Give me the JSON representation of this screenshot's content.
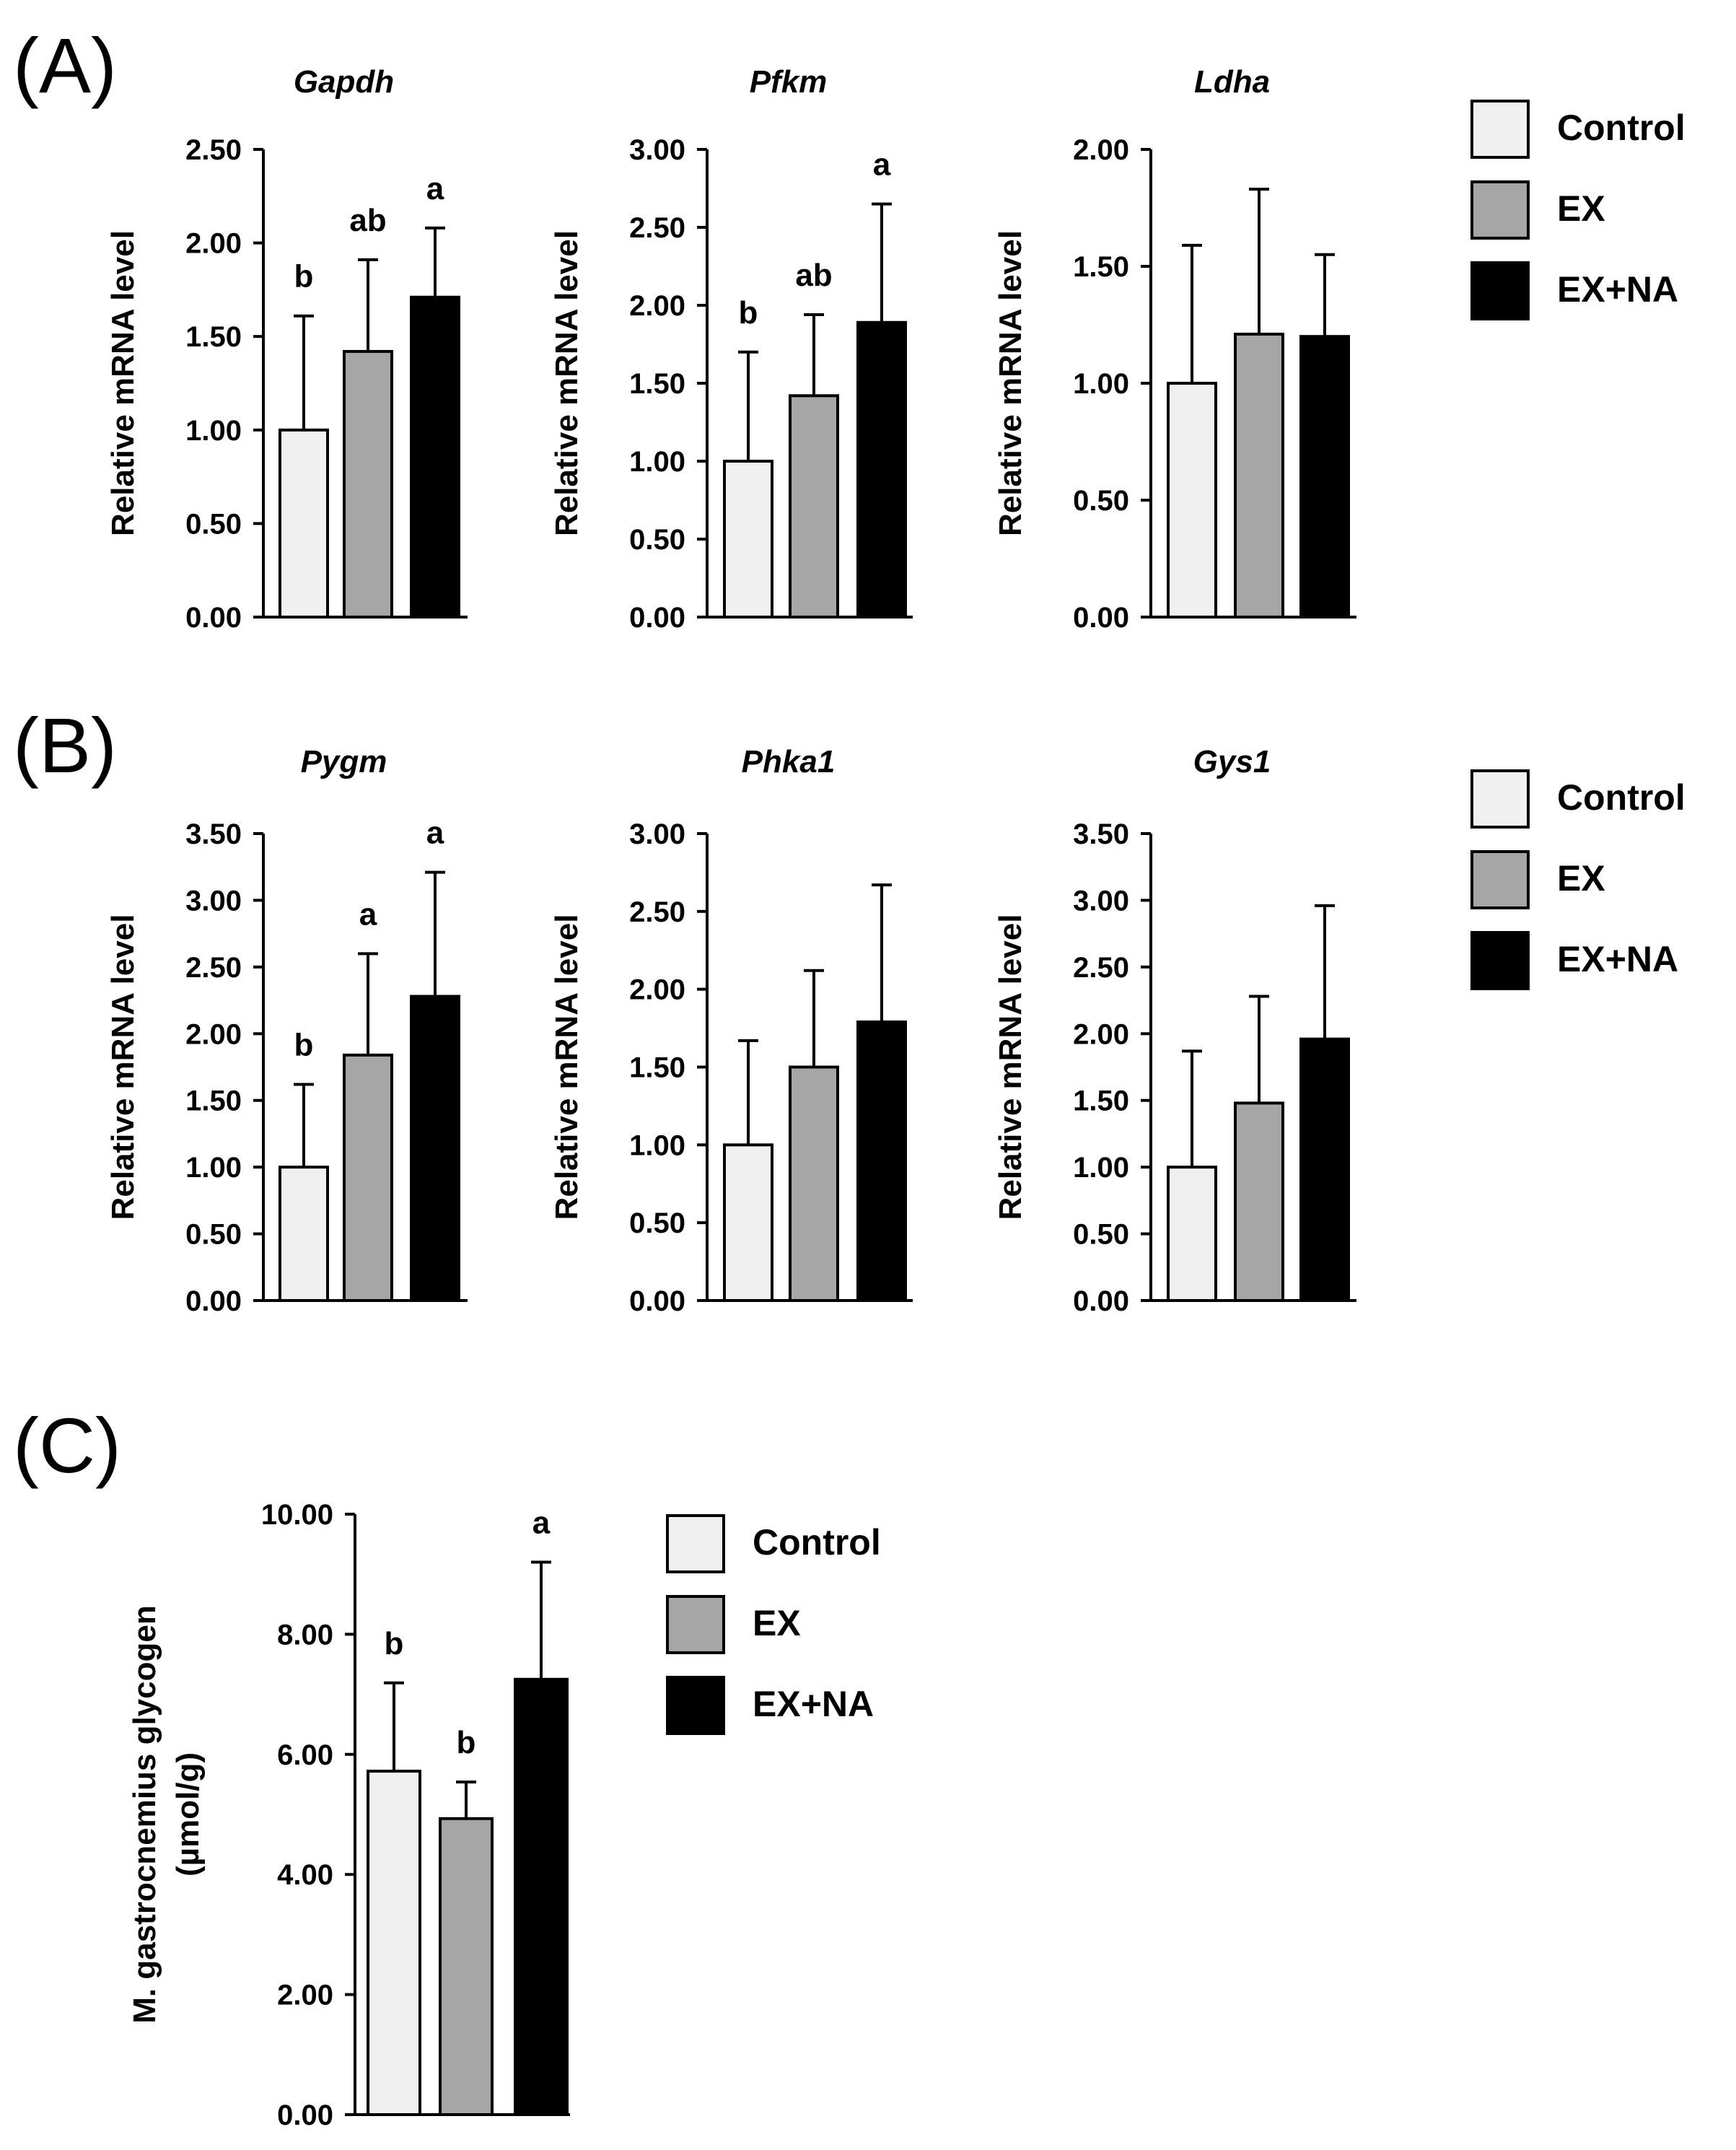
{
  "figure": {
    "colors": {
      "Control": "#f0f0f0",
      "EX": "#a6a6a6",
      "EX+NA": "#000000",
      "axis": "#000000",
      "edge": "#000000"
    },
    "panels": [
      {
        "label": "(A)",
        "legend": [
          "Control",
          "EX",
          "EX+NA"
        ]
      },
      {
        "label": "(B)",
        "legend": [
          "Control",
          "EX",
          "EX+NA"
        ]
      },
      {
        "label": "(C)",
        "legend": [
          "Control",
          "EX",
          "EX+NA"
        ]
      }
    ]
  },
  "chart_data": [
    {
      "type": "bar",
      "panel": "A",
      "title": "Gapdh",
      "ylabel": "Relative mRNA level",
      "categories": [
        "Control",
        "EX",
        "EX+NA"
      ],
      "values": [
        1.0,
        1.42,
        1.71
      ],
      "errors": [
        0.61,
        0.49,
        0.37
      ],
      "letters": [
        "b",
        "ab",
        "a"
      ],
      "ylim": [
        0,
        2.5
      ],
      "yticks": [
        "0.00",
        "0.50",
        "1.00",
        "1.50",
        "2.00",
        "2.50"
      ]
    },
    {
      "type": "bar",
      "panel": "A",
      "title": "Pfkm",
      "ylabel": "Relative mRNA level",
      "categories": [
        "Control",
        "EX",
        "EX+NA"
      ],
      "values": [
        1.0,
        1.42,
        1.89
      ],
      "errors": [
        0.7,
        0.52,
        0.76
      ],
      "letters": [
        "b",
        "ab",
        "a"
      ],
      "ylim": [
        0,
        3.0
      ],
      "yticks": [
        "0.00",
        "0.50",
        "1.00",
        "1.50",
        "2.00",
        "2.50",
        "3.00"
      ]
    },
    {
      "type": "bar",
      "panel": "A",
      "title": "Ldha",
      "ylabel": "Relative mRNA level",
      "categories": [
        "Control",
        "EX",
        "EX+NA"
      ],
      "values": [
        1.0,
        1.21,
        1.2
      ],
      "errors": [
        0.59,
        0.62,
        0.35
      ],
      "letters": [
        "",
        "",
        ""
      ],
      "ylim": [
        0,
        2.0
      ],
      "yticks": [
        "0.00",
        "0.50",
        "1.00",
        "1.50",
        "2.00"
      ]
    },
    {
      "type": "bar",
      "panel": "B",
      "title": "Pygm",
      "ylabel": "Relative mRNA level",
      "categories": [
        "Control",
        "EX",
        "EX+NA"
      ],
      "values": [
        1.0,
        1.84,
        2.28
      ],
      "errors": [
        0.62,
        0.76,
        0.93
      ],
      "letters": [
        "b",
        "a",
        "a"
      ],
      "ylim": [
        0,
        3.5
      ],
      "yticks": [
        "0.00",
        "0.50",
        "1.00",
        "1.50",
        "2.00",
        "2.50",
        "3.00",
        "3.50"
      ]
    },
    {
      "type": "bar",
      "panel": "B",
      "title": "Phka1",
      "ylabel": "Relative mRNA level",
      "categories": [
        "Control",
        "EX",
        "EX+NA"
      ],
      "values": [
        1.0,
        1.5,
        1.79
      ],
      "errors": [
        0.67,
        0.62,
        0.88
      ],
      "letters": [
        "",
        "",
        ""
      ],
      "ylim": [
        0,
        3.0
      ],
      "yticks": [
        "0.00",
        "0.50",
        "1.00",
        "1.50",
        "2.00",
        "2.50",
        "3.00"
      ]
    },
    {
      "type": "bar",
      "panel": "B",
      "title": "Gys1",
      "ylabel": "Relative mRNA level",
      "categories": [
        "Control",
        "EX",
        "EX+NA"
      ],
      "values": [
        1.0,
        1.48,
        1.96
      ],
      "errors": [
        0.87,
        0.8,
        1.0
      ],
      "letters": [
        "",
        "",
        ""
      ],
      "ylim": [
        0,
        3.5
      ],
      "yticks": [
        "0.00",
        "0.50",
        "1.00",
        "1.50",
        "2.00",
        "2.50",
        "3.00",
        "3.50"
      ]
    },
    {
      "type": "bar",
      "panel": "C",
      "title": "",
      "ylabel": "M. gastrocnemius glycogen",
      "ylabel2": "(µmol/g)",
      "categories": [
        "Control",
        "EX",
        "EX+NA"
      ],
      "values": [
        5.72,
        4.93,
        7.25
      ],
      "errors": [
        1.47,
        0.61,
        1.95
      ],
      "letters": [
        "b",
        "b",
        "a"
      ],
      "ylim": [
        0,
        10.0
      ],
      "yticks": [
        "0.00",
        "2.00",
        "4.00",
        "6.00",
        "8.00",
        "10.00"
      ]
    }
  ]
}
